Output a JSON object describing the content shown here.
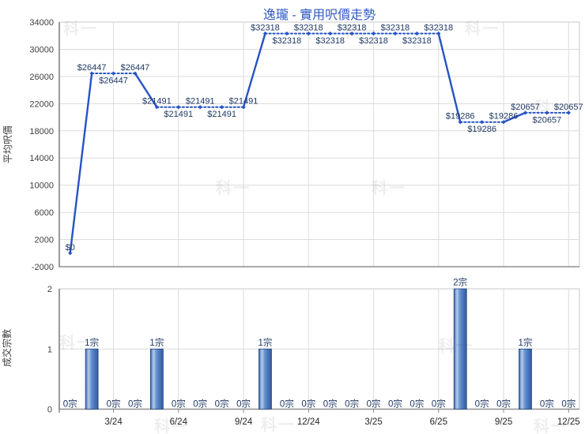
{
  "title": "逸瓏 - 實用呎價走勢",
  "watermark_text": "科一",
  "colors": {
    "title": "#2f5bc4",
    "line": "#2653c5",
    "data_label": "#1f3864",
    "ytick_label": "#3f3f3f",
    "xtick_label": "#262626",
    "grid": "#dcdcdc",
    "border": "#c9c9c9",
    "axis_left": "#9a9a9a",
    "axis_bottom": "#8f8f8f",
    "bar_edge": "#24487f",
    "bar_dark": "#2e5493",
    "bar_light": "#b3cbec",
    "bar_mid": "#4a77bd"
  },
  "chart_data": [
    {
      "type": "line",
      "name": "average-price-per-sqft",
      "ylabel": "平均呎價",
      "ylim": [
        -2000,
        34000
      ],
      "ytick_step": 4000,
      "yticks": [
        34000,
        30000,
        26000,
        22000,
        18000,
        14000,
        10000,
        6000,
        2000,
        -2000
      ],
      "x_slots": 24,
      "grid": true,
      "legend": "none",
      "style_rule": "segments dotted where consecutive values are equal, solid where value changes; diamond markers; labels alternate above/below within runs",
      "points": [
        {
          "slot": 1,
          "value": 0,
          "label": "$0",
          "label_side": "above"
        },
        {
          "slot": 2,
          "value": 26447,
          "label": "$26447",
          "label_side": "above"
        },
        {
          "slot": 3,
          "value": 26447,
          "label": "$26447",
          "label_side": "below"
        },
        {
          "slot": 4,
          "value": 26447,
          "label": "$26447",
          "label_side": "above"
        },
        {
          "slot": 5,
          "value": 21491,
          "label": "$21491",
          "label_side": "above"
        },
        {
          "slot": 6,
          "value": 21491,
          "label": "$21491",
          "label_side": "below"
        },
        {
          "slot": 7,
          "value": 21491,
          "label": "$21491",
          "label_side": "above"
        },
        {
          "slot": 8,
          "value": 21491,
          "label": "$21491",
          "label_side": "below"
        },
        {
          "slot": 9,
          "value": 21491,
          "label": "$21491",
          "label_side": "above"
        },
        {
          "slot": 10,
          "value": 32318,
          "label": "$32318",
          "label_side": "above"
        },
        {
          "slot": 11,
          "value": 32318,
          "label": "$32318",
          "label_side": "below"
        },
        {
          "slot": 12,
          "value": 32318,
          "label": "$32318",
          "label_side": "above"
        },
        {
          "slot": 13,
          "value": 32318,
          "label": "$32318",
          "label_side": "below"
        },
        {
          "slot": 14,
          "value": 32318,
          "label": "$32318",
          "label_side": "above"
        },
        {
          "slot": 15,
          "value": 32318,
          "label": "$32318",
          "label_side": "below"
        },
        {
          "slot": 16,
          "value": 32318,
          "label": "$32318",
          "label_side": "above"
        },
        {
          "slot": 17,
          "value": 32318,
          "label": "$32318",
          "label_side": "below"
        },
        {
          "slot": 18,
          "value": 32318,
          "label": "$32318",
          "label_side": "above"
        },
        {
          "slot": 19,
          "value": 19286,
          "label": "$19286",
          "label_side": "above"
        },
        {
          "slot": 20,
          "value": 19286,
          "label": "$19286",
          "label_side": "below"
        },
        {
          "slot": 21,
          "value": 19286,
          "label": "$19286",
          "label_side": "above"
        },
        {
          "slot": 22,
          "value": 20657,
          "label": "$20657",
          "label_side": "above"
        },
        {
          "slot": 23,
          "value": 20657,
          "label": "$20657",
          "label_side": "below"
        },
        {
          "slot": 24,
          "value": 20657,
          "label": "$20657",
          "label_side": "above"
        }
      ]
    },
    {
      "type": "bar",
      "name": "transaction-count",
      "ylabel": "成交宗數",
      "ylim": [
        0,
        2
      ],
      "yticks": [
        2,
        1,
        0
      ],
      "x_slots": 24,
      "grid": true,
      "values": [
        0,
        1,
        0,
        0,
        1,
        0,
        0,
        0,
        0,
        1,
        0,
        0,
        0,
        0,
        0,
        0,
        0,
        0,
        2,
        0,
        0,
        1,
        0,
        0
      ],
      "bar_labels": [
        "0宗",
        "1宗",
        "0宗",
        "0宗",
        "1宗",
        "0宗",
        "0宗",
        "0宗",
        "0宗",
        "1宗",
        "0宗",
        "0宗",
        "0宗",
        "0宗",
        "0宗",
        "0宗",
        "0宗",
        "0宗",
        "2宗",
        "0宗",
        "0宗",
        "1宗",
        "0宗",
        "0宗"
      ],
      "xticks": [
        {
          "slot": 3,
          "label": "3/24"
        },
        {
          "slot": 6,
          "label": "6/24"
        },
        {
          "slot": 9,
          "label": "9/24"
        },
        {
          "slot": 12,
          "label": "12/24"
        },
        {
          "slot": 15,
          "label": "3/25"
        },
        {
          "slot": 18,
          "label": "6/25"
        },
        {
          "slot": 21,
          "label": "9/25"
        },
        {
          "slot": 24,
          "label": "12/25"
        }
      ]
    }
  ]
}
